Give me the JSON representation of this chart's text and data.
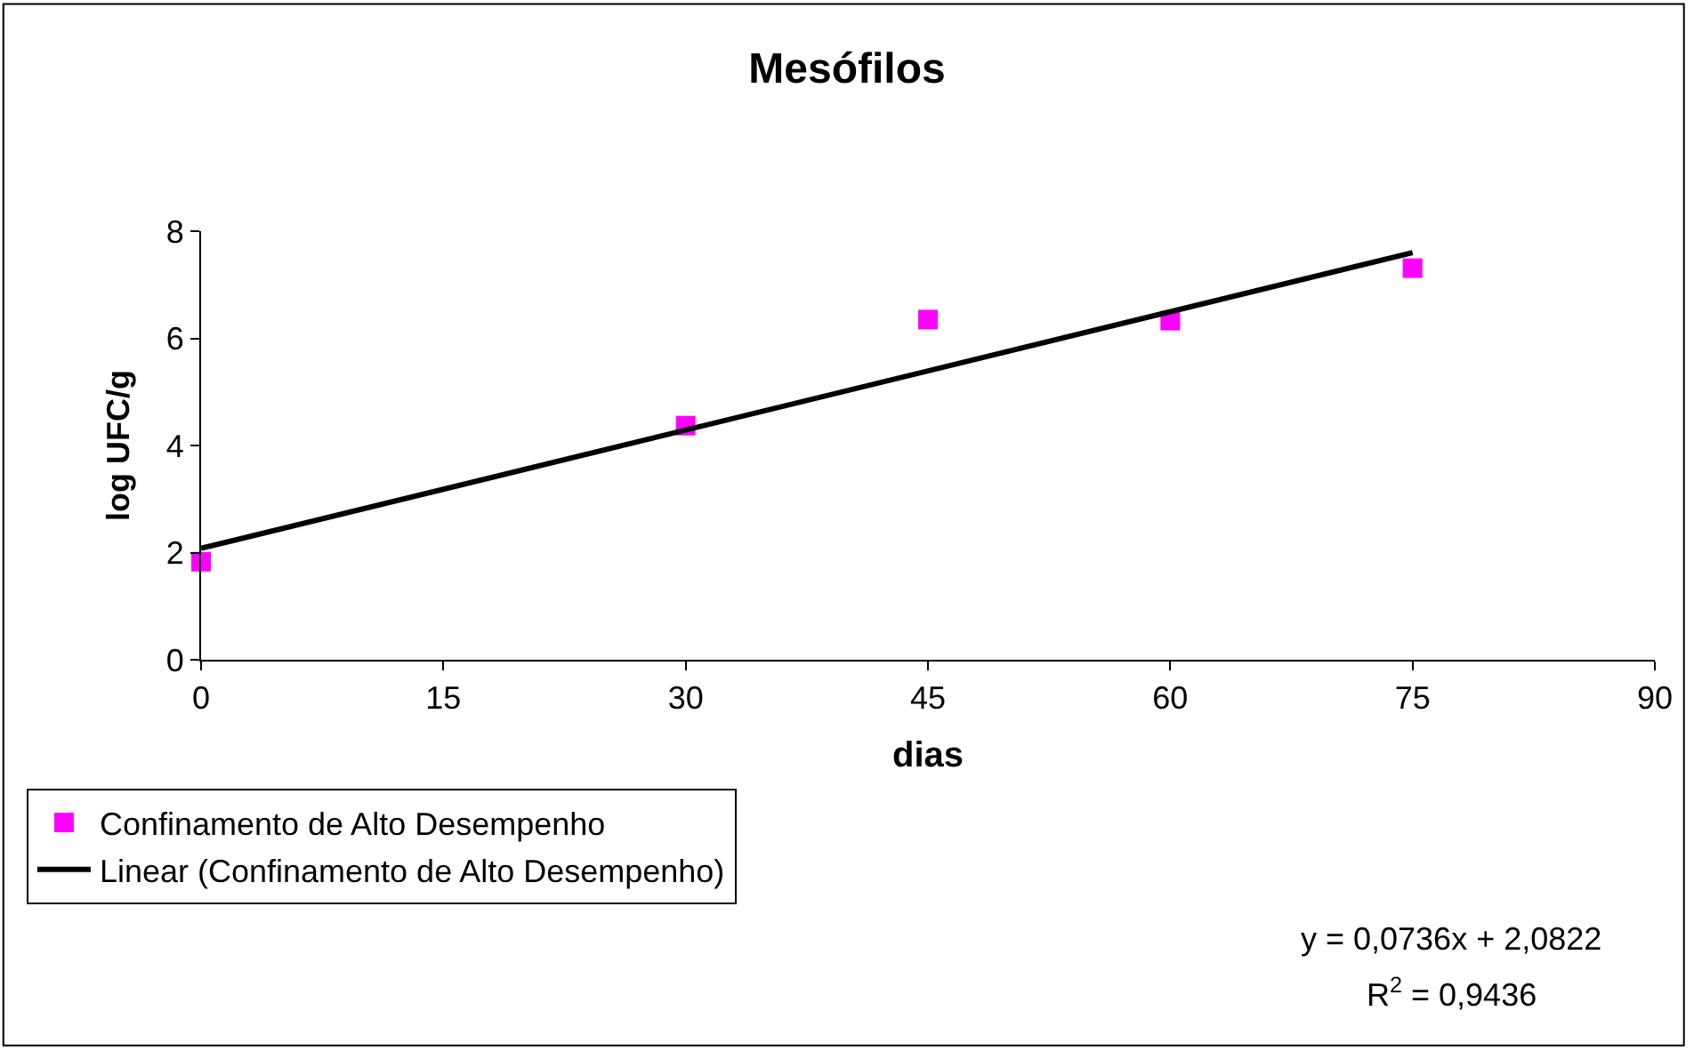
{
  "chart_data": {
    "type": "scatter",
    "title": "Mesófilos",
    "xlabel": "dias",
    "ylabel": "log UFC/g",
    "xlim": [
      0,
      90
    ],
    "xticks": [
      0,
      15,
      30,
      45,
      60,
      75,
      90
    ],
    "ylim": [
      0,
      8
    ],
    "yticks": [
      0,
      2,
      4,
      6,
      8
    ],
    "legend": "bottom left",
    "marker": "square",
    "series": [
      {
        "name": "Confinamento de Alto Desempenho",
        "color": "#ff00ff",
        "x": [
          0,
          30,
          45,
          60,
          75
        ],
        "values": [
          1.83,
          4.37,
          6.35,
          6.33,
          7.31
        ]
      },
      {
        "name": "Linear (Confinamento de Alto Desempenho)",
        "type": "line",
        "color": "#000000",
        "line_style": "solid",
        "marker": "none",
        "x": [
          0,
          75
        ],
        "values": [
          2.08,
          7.6
        ]
      }
    ],
    "annotations": [
      "y = 0,0736x + 2,0822",
      "R$^{2}$ = 0,9436"
    ]
  }
}
